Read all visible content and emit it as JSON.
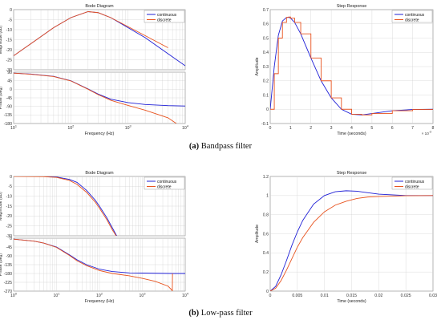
{
  "captions": {
    "a_letter": "(a)",
    "a_text": " Bandpass filter",
    "b_letter": "(b)",
    "b_text": " Low-pass filter"
  },
  "colors": {
    "continuous": "#1f1fd6",
    "discrete": "#e8531f"
  },
  "chart_data": [
    {
      "id": "bp_bode",
      "type": "line",
      "title": "Bode Diagram",
      "xlabel": "Frequency  (Hz)",
      "xscale": "log",
      "xlim": [
        10,
        10000
      ],
      "x_ticks": [
        {
          "label": "10",
          "exp": "1",
          "v": 10
        },
        {
          "label": "10",
          "exp": "2",
          "v": 100
        },
        {
          "label": "10",
          "exp": "3",
          "v": 1000
        },
        {
          "label": "10",
          "exp": "4",
          "v": 10000
        }
      ],
      "legend": [
        "continuous",
        "discrete"
      ],
      "legend_position": "top-right",
      "grid": true,
      "magnitude": {
        "ylabel": "Magnitude (dB)",
        "ylim": [
          -30,
          0
        ],
        "yticks": [
          0,
          -5,
          -10,
          -15,
          -20,
          -25,
          -30
        ],
        "series": [
          {
            "name": "continuous",
            "x": [
              10,
              20,
              50,
              100,
              200,
              300,
              500,
              1000,
              2000,
              5000,
              10000
            ],
            "values": [
              -23,
              -17,
              -9,
              -4,
              -1,
              -1.5,
              -4,
              -9,
              -14,
              -22,
              -28
            ]
          },
          {
            "name": "discrete",
            "x": [
              10,
              20,
              50,
              100,
              200,
              300,
              500,
              1000,
              2000,
              5000
            ],
            "values": [
              -23,
              -17,
              -9,
              -4,
              -1,
              -1.5,
              -4,
              -8.5,
              -13,
              -19
            ]
          }
        ]
      },
      "phase": {
        "ylabel": "Phase (deg)",
        "ylim": [
          -180,
          90
        ],
        "yticks": [
          90,
          45,
          0,
          -45,
          -90,
          -135,
          -180
        ],
        "series": [
          {
            "name": "continuous",
            "x": [
              10,
              20,
              50,
              100,
              200,
              300,
              500,
              1000,
              2000,
              5000,
              10000
            ],
            "values": [
              85,
              80,
              68,
              45,
              2,
              -25,
              -52,
              -70,
              -80,
              -86,
              -88
            ]
          },
          {
            "name": "discrete",
            "x": [
              10,
              20,
              50,
              100,
              200,
              300,
              500,
              1000,
              2000,
              5000,
              7000
            ],
            "values": [
              85,
              79,
              67,
              44,
              0,
              -28,
              -58,
              -85,
              -110,
              -150,
              -180
            ]
          }
        ]
      }
    },
    {
      "id": "bp_step",
      "type": "line",
      "title": "Step Response",
      "xlabel": "Time (seconds)",
      "ylabel": "Amplitude",
      "xlim": [
        0,
        0.008
      ],
      "ylim": [
        -0.1,
        0.7
      ],
      "x_ticks": [
        {
          "label": "0",
          "v": 0
        },
        {
          "label": "1",
          "v": 0.001
        },
        {
          "label": "2",
          "v": 0.002
        },
        {
          "label": "3",
          "v": 0.003
        },
        {
          "label": "4",
          "v": 0.004
        },
        {
          "label": "5",
          "v": 0.005
        },
        {
          "label": "6",
          "v": 0.006
        },
        {
          "label": "7",
          "v": 0.007
        },
        {
          "label": "8",
          "v": 0.008
        }
      ],
      "x_multiplier": "× 10",
      "x_multiplier_exp": "-3",
      "yticks": [
        -0.1,
        0,
        0.1,
        0.2,
        0.3,
        0.4,
        0.5,
        0.6,
        0.7
      ],
      "legend": [
        "continuous",
        "discrete"
      ],
      "legend_position": "top-right",
      "series": [
        {
          "name": "continuous",
          "x": [
            0,
            0.0002,
            0.0004,
            0.0006,
            0.0008,
            0.0009,
            0.001,
            0.0012,
            0.0015,
            0.002,
            0.0025,
            0.003,
            0.0035,
            0.004,
            0.0045,
            0.005,
            0.006,
            0.007,
            0.008
          ],
          "values": [
            0,
            0.3,
            0.52,
            0.62,
            0.645,
            0.647,
            0.64,
            0.61,
            0.53,
            0.36,
            0.2,
            0.08,
            0.0,
            -0.035,
            -0.04,
            -0.03,
            -0.01,
            -0.002,
            0
          ]
        },
        {
          "name": "discrete",
          "x": [
            0,
            0.0002,
            0.0004,
            0.0006,
            0.0008,
            0.0009,
            0.001,
            0.0012,
            0.0015,
            0.002,
            0.0025,
            0.003,
            0.0035,
            0.004,
            0.0045,
            0.005,
            0.006,
            0.007,
            0.008
          ],
          "values": [
            0,
            0.25,
            0.5,
            0.61,
            0.645,
            0.648,
            0.64,
            0.61,
            0.53,
            0.36,
            0.2,
            0.08,
            0.0,
            -0.035,
            -0.04,
            -0.03,
            -0.01,
            -0.002,
            0
          ],
          "step": true
        }
      ]
    },
    {
      "id": "lp_bode",
      "type": "line",
      "title": "Bode Diagram",
      "xlabel": "Frequency  (Hz)",
      "xscale": "log",
      "xlim": [
        1,
        10000
      ],
      "x_ticks": [
        {
          "label": "10",
          "exp": "0",
          "v": 1
        },
        {
          "label": "10",
          "exp": "1",
          "v": 10
        },
        {
          "label": "10",
          "exp": "2",
          "v": 100
        },
        {
          "label": "10",
          "exp": "3",
          "v": 1000
        },
        {
          "label": "10",
          "exp": "4",
          "v": 10000
        }
      ],
      "legend": [
        "continuous",
        "discrete"
      ],
      "legend_position": "top-right",
      "grid": true,
      "magnitude": {
        "ylabel": "Magnitude (dB)",
        "ylim": [
          -30,
          0
        ],
        "yticks": [
          0,
          -5,
          -10,
          -15,
          -20,
          -25,
          -30
        ],
        "series": [
          {
            "name": "continuous",
            "x": [
              1,
              5,
              10,
              20,
              30,
              50,
              80,
              100,
              150,
              200,
              300
            ],
            "values": [
              0,
              0,
              -0.3,
              -1.5,
              -3,
              -7,
              -12,
              -15,
              -21,
              -26,
              -33
            ]
          },
          {
            "name": "discrete",
            "x": [
              1,
              5,
              10,
              20,
              30,
              50,
              80,
              100,
              150,
              200,
              300
            ],
            "values": [
              0,
              -0.1,
              -0.5,
              -2,
              -4,
              -8,
              -13,
              -16,
              -22,
              -27,
              -33
            ]
          }
        ]
      },
      "phase": {
        "ylabel": "Phase (deg)",
        "ylim": [
          -270,
          0
        ],
        "yticks": [
          0,
          -45,
          -90,
          -135,
          -180,
          -225,
          -270
        ],
        "series": [
          {
            "name": "continuous",
            "x": [
              1,
              3,
              5,
              10,
              20,
              30,
              50,
              100,
              200,
              500,
              1000,
              5000,
              10000
            ],
            "values": [
              -5,
              -15,
              -25,
              -45,
              -85,
              -110,
              -135,
              -158,
              -170,
              -177,
              -178,
              -180,
              -180
            ]
          },
          {
            "name": "discrete",
            "x": [
              1,
              3,
              5,
              10,
              20,
              30,
              50,
              100,
              200,
              500,
              1000,
              2000,
              4000,
              4900,
              5000,
              5050
            ],
            "values": [
              -5,
              -15,
              -25,
              -47,
              -88,
              -115,
              -140,
              -165,
              -180,
              -192,
              -205,
              -220,
              -245,
              -265,
              -270,
              -180
            ]
          }
        ]
      }
    },
    {
      "id": "lp_step",
      "type": "line",
      "title": "Step Response",
      "xlabel": "Time (seconds)",
      "ylabel": "Amplitude",
      "xlim": [
        0,
        0.03
      ],
      "ylim": [
        0,
        1.2
      ],
      "x_ticks": [
        {
          "label": "0",
          "v": 0
        },
        {
          "label": "0.005",
          "v": 0.005
        },
        {
          "label": "0.01",
          "v": 0.01
        },
        {
          "label": "0.015",
          "v": 0.015
        },
        {
          "label": "0.02",
          "v": 0.02
        },
        {
          "label": "0.025",
          "v": 0.025
        },
        {
          "label": "0.03",
          "v": 0.03
        }
      ],
      "yticks": [
        0,
        0.2,
        0.4,
        0.6,
        0.8,
        1,
        1.2
      ],
      "legend": [
        "continuous",
        "discrete"
      ],
      "legend_position": "top-right",
      "series": [
        {
          "name": "continuous",
          "x": [
            0,
            0.001,
            0.002,
            0.003,
            0.004,
            0.005,
            0.006,
            0.008,
            0.01,
            0.012,
            0.014,
            0.016,
            0.018,
            0.02,
            0.025,
            0.03
          ],
          "values": [
            0,
            0.05,
            0.17,
            0.32,
            0.48,
            0.62,
            0.74,
            0.91,
            1.0,
            1.04,
            1.05,
            1.045,
            1.03,
            1.015,
            1.0,
            1.0
          ]
        },
        {
          "name": "discrete",
          "x": [
            0,
            0.001,
            0.002,
            0.003,
            0.004,
            0.005,
            0.006,
            0.008,
            0.01,
            0.012,
            0.014,
            0.016,
            0.018,
            0.02,
            0.025,
            0.03
          ],
          "values": [
            0,
            0.03,
            0.11,
            0.22,
            0.34,
            0.46,
            0.56,
            0.72,
            0.83,
            0.9,
            0.94,
            0.97,
            0.985,
            0.99,
            0.998,
            1.0
          ]
        }
      ]
    }
  ]
}
